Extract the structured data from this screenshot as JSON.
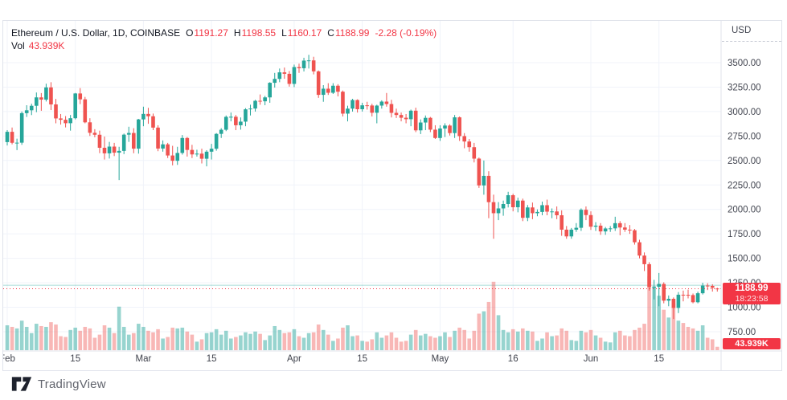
{
  "header": {
    "symbol_title": "Ethereum / U.S. Dollar, 1D, COINBASE",
    "open_label": "O",
    "open": "1191.27",
    "high_label": "H",
    "high": "1198.55",
    "low_label": "L",
    "low": "1160.17",
    "close_label": "C",
    "close": "1188.99",
    "change": "-2.28 (-0.19%)",
    "vol_label": "Vol",
    "vol_value": "43.939K"
  },
  "badges": {
    "price": "1188.99",
    "countdown": "18:23:58",
    "volume": "43.939K"
  },
  "axis": {
    "currency": "USD",
    "price_ticks": [
      "3500.00",
      "3250.00",
      "3000.00",
      "2750.00",
      "2500.00",
      "2250.00",
      "2000.00",
      "1750.00",
      "1500.00",
      "1250.00",
      "1000.00",
      "750.00"
    ],
    "price_tick_values": [
      3500,
      3250,
      3000,
      2750,
      2500,
      2250,
      2000,
      1750,
      1500,
      1250,
      1000,
      750
    ],
    "time_ticks": [
      {
        "i": 0,
        "label": "Feb"
      },
      {
        "i": 14,
        "label": "15"
      },
      {
        "i": 28,
        "label": "Mar"
      },
      {
        "i": 42,
        "label": "15"
      },
      {
        "i": 59,
        "label": "Apr"
      },
      {
        "i": 73,
        "label": "15"
      },
      {
        "i": 89,
        "label": "May"
      },
      {
        "i": 104,
        "label": "16"
      },
      {
        "i": 120,
        "label": "Jun"
      },
      {
        "i": 134,
        "label": "15"
      }
    ]
  },
  "watermark": {
    "brand": "TradingView"
  },
  "colors": {
    "up": "#26a69a",
    "down": "#ef5350",
    "vol_up": "rgba(38,166,154,0.48)",
    "vol_down": "rgba(239,83,80,0.42)",
    "accent_red": "#f23645",
    "grid": "#f0f3fa",
    "axis_line": "#e0e3eb",
    "price_line_overlay": "rgba(38,166,154,0.4)"
  },
  "chart_data": {
    "type": "candlestick",
    "title": "Ethereum / U.S. Dollar, 1D, COINBASE",
    "ylabel": "USD",
    "ylim": [
      750,
      3500
    ],
    "grid_step": 250,
    "legend_position": "top-left",
    "grid": true,
    "price_line": 1188.99,
    "overlay_lines": [
      {
        "price": 1188.99,
        "color": "#f23645",
        "style": "dotted",
        "name": "last-price-line"
      },
      {
        "price": 1225,
        "color": "rgba(38,166,154,0.4)",
        "style": "solid",
        "name": "volume-value-line"
      }
    ],
    "last": {
      "open": 1191.27,
      "high": 1198.55,
      "low": 1160.17,
      "close": 1188.99,
      "change": -2.28,
      "change_pct": -0.19,
      "volume_k": 43.939
    },
    "candles": [
      [
        2688,
        2810,
        2653,
        2793,
        320
      ],
      [
        2793,
        2837,
        2665,
        2681,
        300
      ],
      [
        2681,
        2723,
        2606,
        2682,
        280
      ],
      [
        2682,
        3001,
        2660,
        2984,
        380
      ],
      [
        2984,
        3065,
        2945,
        3013,
        300
      ],
      [
        3013,
        3080,
        2964,
        3059,
        220
      ],
      [
        3059,
        3195,
        2994,
        3145,
        340
      ],
      [
        3145,
        3189,
        3008,
        3122,
        310
      ],
      [
        3122,
        3285,
        3103,
        3247,
        300
      ],
      [
        3247,
        3300,
        3015,
        3073,
        360
      ],
      [
        3073,
        3130,
        2880,
        2930,
        330
      ],
      [
        2930,
        2975,
        2867,
        2916,
        180
      ],
      [
        2916,
        2954,
        2838,
        2881,
        170
      ],
      [
        2881,
        2965,
        2805,
        2932,
        260
      ],
      [
        2932,
        3190,
        2920,
        3185,
        290
      ],
      [
        3185,
        3240,
        3076,
        3125,
        250
      ],
      [
        3125,
        3150,
        2880,
        2890,
        300
      ],
      [
        2890,
        2932,
        2751,
        2783,
        280
      ],
      [
        2783,
        2820,
        2737,
        2763,
        160
      ],
      [
        2763,
        2805,
        2575,
        2630,
        200
      ],
      [
        2630,
        2745,
        2510,
        2573,
        320
      ],
      [
        2573,
        2690,
        2520,
        2642,
        290
      ],
      [
        2642,
        2680,
        2545,
        2580,
        220
      ],
      [
        2580,
        2640,
        2300,
        2598,
        560
      ],
      [
        2598,
        2775,
        2565,
        2764,
        300
      ],
      [
        2764,
        2845,
        2690,
        2781,
        200
      ],
      [
        2781,
        2830,
        2574,
        2621,
        220
      ],
      [
        2621,
        2925,
        2570,
        2920,
        340
      ],
      [
        2920,
        3050,
        2850,
        2976,
        300
      ],
      [
        2976,
        3038,
        2875,
        2952,
        250
      ],
      [
        2952,
        2980,
        2810,
        2836,
        230
      ],
      [
        2836,
        2860,
        2595,
        2622,
        270
      ],
      [
        2622,
        2705,
        2590,
        2665,
        150
      ],
      [
        2665,
        2680,
        2525,
        2551,
        170
      ],
      [
        2551,
        2650,
        2450,
        2497,
        290
      ],
      [
        2497,
        2640,
        2455,
        2577,
        280
      ],
      [
        2577,
        2760,
        2560,
        2730,
        290
      ],
      [
        2730,
        2740,
        2540,
        2608,
        240
      ],
      [
        2608,
        2660,
        2525,
        2562,
        200
      ],
      [
        2562,
        2610,
        2540,
        2570,
        110
      ],
      [
        2570,
        2620,
        2470,
        2518,
        140
      ],
      [
        2518,
        2605,
        2440,
        2590,
        220
      ],
      [
        2590,
        2670,
        2510,
        2620,
        230
      ],
      [
        2620,
        2780,
        2600,
        2772,
        270
      ],
      [
        2772,
        2830,
        2730,
        2814,
        200
      ],
      [
        2814,
        2960,
        2800,
        2946,
        250
      ],
      [
        2946,
        2990,
        2900,
        2947,
        150
      ],
      [
        2947,
        2965,
        2810,
        2860,
        170
      ],
      [
        2860,
        2940,
        2815,
        2897,
        190
      ],
      [
        2897,
        3035,
        2850,
        3023,
        230
      ],
      [
        3023,
        3070,
        2960,
        3031,
        210
      ],
      [
        3031,
        3120,
        3000,
        3110,
        240
      ],
      [
        3110,
        3175,
        3070,
        3105,
        210
      ],
      [
        3105,
        3160,
        3065,
        3145,
        130
      ],
      [
        3145,
        3300,
        3090,
        3294,
        190
      ],
      [
        3294,
        3395,
        3245,
        3334,
        310
      ],
      [
        3334,
        3440,
        3300,
        3401,
        260
      ],
      [
        3401,
        3450,
        3335,
        3386,
        220
      ],
      [
        3386,
        3415,
        3255,
        3283,
        230
      ],
      [
        3283,
        3480,
        3250,
        3455,
        270
      ],
      [
        3455,
        3490,
        3395,
        3443,
        180
      ],
      [
        3443,
        3550,
        3410,
        3521,
        160
      ],
      [
        3521,
        3580,
        3440,
        3523,
        220
      ],
      [
        3523,
        3560,
        3380,
        3411,
        230
      ],
      [
        3411,
        3420,
        3140,
        3171,
        330
      ],
      [
        3171,
        3270,
        3100,
        3234,
        260
      ],
      [
        3234,
        3290,
        3170,
        3192,
        200
      ],
      [
        3192,
        3290,
        3180,
        3264,
        120
      ],
      [
        3264,
        3280,
        3155,
        3203,
        150
      ],
      [
        3203,
        3215,
        2950,
        2979,
        290
      ],
      [
        2979,
        3060,
        2900,
        3030,
        320
      ],
      [
        3030,
        3130,
        3000,
        3118,
        180
      ],
      [
        3118,
        3125,
        2990,
        3024,
        190
      ],
      [
        3024,
        3090,
        3000,
        3064,
        120
      ],
      [
        3064,
        3100,
        3020,
        3062,
        110
      ],
      [
        3062,
        3080,
        2950,
        2988,
        140
      ],
      [
        2988,
        3070,
        2880,
        3061,
        230
      ],
      [
        3061,
        3115,
        3030,
        3102,
        160
      ],
      [
        3102,
        3190,
        3050,
        3077,
        190
      ],
      [
        3077,
        3120,
        2940,
        2987,
        230
      ],
      [
        2987,
        3030,
        2935,
        2965,
        160
      ],
      [
        2965,
        2990,
        2900,
        2937,
        110
      ],
      [
        2937,
        2975,
        2880,
        2922,
        120
      ],
      [
        2922,
        3020,
        2850,
        3009,
        200
      ],
      [
        3009,
        3040,
        2790,
        2808,
        260
      ],
      [
        2808,
        2920,
        2770,
        2888,
        190
      ],
      [
        2888,
        2960,
        2810,
        2936,
        210
      ],
      [
        2936,
        2945,
        2790,
        2815,
        180
      ],
      [
        2815,
        2860,
        2720,
        2730,
        160
      ],
      [
        2730,
        2860,
        2700,
        2827,
        180
      ],
      [
        2827,
        2880,
        2740,
        2857,
        230
      ],
      [
        2857,
        2870,
        2755,
        2780,
        170
      ],
      [
        2780,
        2965,
        2730,
        2941,
        250
      ],
      [
        2941,
        2950,
        2700,
        2749,
        290
      ],
      [
        2749,
        2780,
        2625,
        2694,
        260
      ],
      [
        2694,
        2720,
        2590,
        2636,
        150
      ],
      [
        2636,
        2680,
        2480,
        2519,
        250
      ],
      [
        2519,
        2530,
        2220,
        2245,
        470
      ],
      [
        2245,
        2500,
        2150,
        2343,
        500
      ],
      [
        2343,
        2390,
        1910,
        2074,
        620
      ],
      [
        2074,
        2150,
        1700,
        1961,
        880
      ],
      [
        1961,
        2075,
        1890,
        2010,
        450
      ],
      [
        2010,
        2090,
        1935,
        2055,
        260
      ],
      [
        2055,
        2180,
        2020,
        2145,
        230
      ],
      [
        2145,
        2160,
        1980,
        2022,
        270
      ],
      [
        2022,
        2120,
        1970,
        2090,
        240
      ],
      [
        2090,
        2110,
        1880,
        1914,
        280
      ],
      [
        1914,
        2045,
        1880,
        2020,
        250
      ],
      [
        2020,
        2070,
        1900,
        1961,
        240
      ],
      [
        1961,
        2000,
        1930,
        1974,
        120
      ],
      [
        1974,
        2080,
        1940,
        2043,
        150
      ],
      [
        2043,
        2100,
        1940,
        1977,
        230
      ],
      [
        1977,
        2010,
        1910,
        1979,
        180
      ],
      [
        1979,
        2030,
        1900,
        1940,
        190
      ],
      [
        1940,
        1990,
        1730,
        1793,
        280
      ],
      [
        1793,
        1830,
        1700,
        1724,
        250
      ],
      [
        1724,
        1810,
        1700,
        1793,
        130
      ],
      [
        1793,
        1860,
        1770,
        1812,
        120
      ],
      [
        1812,
        2010,
        1780,
        1996,
        250
      ],
      [
        1996,
        2030,
        1890,
        1942,
        230
      ],
      [
        1942,
        1980,
        1790,
        1823,
        260
      ],
      [
        1823,
        1870,
        1780,
        1834,
        190
      ],
      [
        1834,
        1860,
        1740,
        1775,
        160
      ],
      [
        1775,
        1820,
        1740,
        1805,
        110
      ],
      [
        1805,
        1830,
        1770,
        1806,
        100
      ],
      [
        1806,
        1925,
        1780,
        1859,
        230
      ],
      [
        1859,
        1880,
        1735,
        1815,
        250
      ],
      [
        1815,
        1860,
        1770,
        1793,
        190
      ],
      [
        1793,
        1840,
        1750,
        1787,
        180
      ],
      [
        1787,
        1800,
        1640,
        1664,
        260
      ],
      [
        1664,
        1690,
        1500,
        1528,
        290
      ],
      [
        1528,
        1560,
        1370,
        1440,
        340
      ],
      [
        1440,
        1460,
        1170,
        1206,
        950
      ],
      [
        1206,
        1280,
        1080,
        1210,
        820
      ],
      [
        1210,
        1350,
        1010,
        1238,
        700
      ],
      [
        1238,
        1255,
        1040,
        1067,
        520
      ],
      [
        1067,
        1120,
        1010,
        1086,
        420
      ],
      [
        1086,
        1100,
        880,
        993,
        600
      ],
      [
        993,
        1155,
        940,
        1128,
        380
      ],
      [
        1128,
        1170,
        1060,
        1127,
        350
      ],
      [
        1127,
        1180,
        1090,
        1124,
        300
      ],
      [
        1124,
        1140,
        1040,
        1051,
        280
      ],
      [
        1051,
        1160,
        1040,
        1143,
        250
      ],
      [
        1143,
        1250,
        1130,
        1221,
        320
      ],
      [
        1221,
        1245,
        1175,
        1218,
        160
      ],
      [
        1218,
        1235,
        1160,
        1199,
        140
      ],
      [
        1191.27,
        1198.55,
        1160.17,
        1188.99,
        43.939
      ]
    ]
  }
}
